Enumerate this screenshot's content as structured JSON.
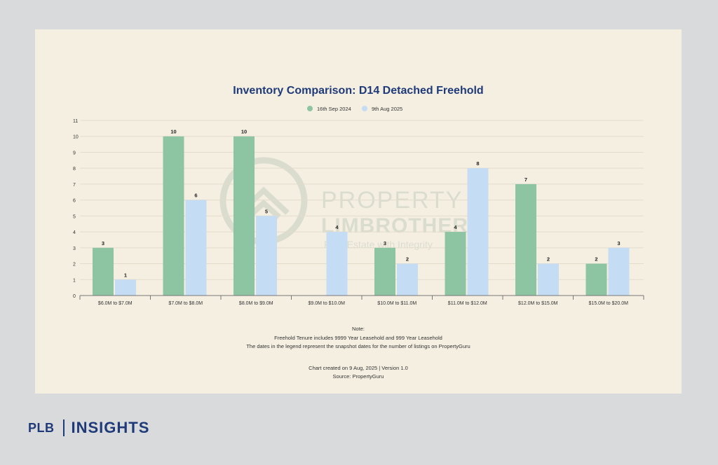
{
  "footer": {
    "brand": "PLB",
    "section": "INSIGHTS"
  },
  "watermark": {
    "line1": "PROPERTY",
    "line2": "LIMBROTHERS",
    "line3": "Real Estate with Integrity"
  },
  "notes": {
    "heading": "Note:",
    "line1": "Freehold Tenure includes 9999 Year Leasehold and 999 Year Leasehold",
    "line2": "The dates in the legend represent the snapshot dates for the number of listings on PropertyGuru",
    "created": "Chart created on 9 Aug, 2025 | Version 1.0",
    "source": "Source: PropertyGuru"
  },
  "colors": {
    "series1": "#8dc5a3",
    "series2": "#c5dcf5",
    "title": "#1f3a78",
    "background": "#f5efe2"
  },
  "chart_data": {
    "type": "bar",
    "title": "Inventory Comparison: D14 Detached Freehold",
    "xlabel": "",
    "ylabel": "",
    "categories": [
      "$6.0M to $7.0M",
      "$7.0M to $8.0M",
      "$8.0M to $9.0M",
      "$9.0M to $10.0M",
      "$10.0M to $11.0M",
      "$11.0M to $12.0M",
      "$12.0M to $15.0M",
      "$15.0M to $20.0M"
    ],
    "series": [
      {
        "name": "16th Sep 2024",
        "values": [
          3,
          10,
          10,
          0,
          3,
          4,
          7,
          2
        ],
        "labels": [
          "3",
          "10",
          "10",
          "",
          "3",
          "4",
          "7",
          "2"
        ]
      },
      {
        "name": "9th Aug 2025",
        "values": [
          1,
          6,
          5,
          4,
          2,
          8,
          2,
          3
        ],
        "labels": [
          "1",
          "6",
          "5",
          "4",
          "2",
          "8",
          "2",
          "3"
        ]
      }
    ],
    "ylim": [
      0,
      11
    ],
    "yticks": [
      0,
      1,
      2,
      3,
      4,
      5,
      6,
      7,
      8,
      9,
      10,
      11
    ],
    "grid": true,
    "legend": "top-center"
  }
}
